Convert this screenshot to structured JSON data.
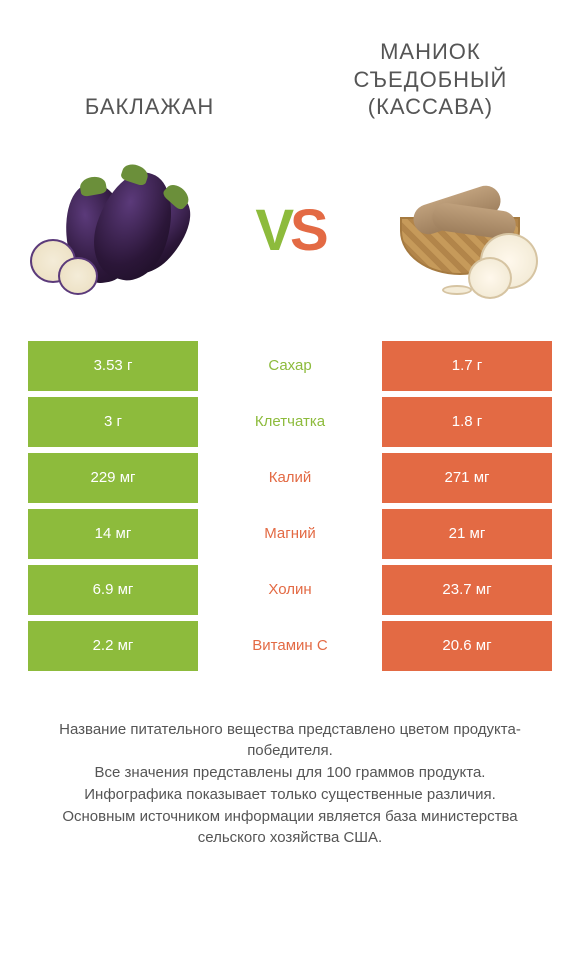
{
  "header": {
    "left_title": "БАКЛАЖАН",
    "right_title_line1": "МАНИОК",
    "right_title_line2": "СЪЕДОБНЫЙ",
    "right_title_line3": "(КАССАВА)"
  },
  "vs": {
    "v": "V",
    "s": "S"
  },
  "colors": {
    "left": "#8dbb3c",
    "right": "#e36a44",
    "bg": "#ffffff"
  },
  "nutrients": [
    {
      "label": "Сахар",
      "left": "3.53 г",
      "right": "1.7 г",
      "winner": "left"
    },
    {
      "label": "Клетчатка",
      "left": "3 г",
      "right": "1.8 г",
      "winner": "left"
    },
    {
      "label": "Калий",
      "left": "229 мг",
      "right": "271 мг",
      "winner": "right"
    },
    {
      "label": "Магний",
      "left": "14 мг",
      "right": "21 мг",
      "winner": "right"
    },
    {
      "label": "Холин",
      "left": "6.9 мг",
      "right": "23.7 мг",
      "winner": "right"
    },
    {
      "label": "Витамин C",
      "left": "2.2 мг",
      "right": "20.6 мг",
      "winner": "right"
    }
  ],
  "footer": {
    "line1": "Название питательного вещества представлено цветом продукта-победителя.",
    "line2": "Все значения представлены для 100 граммов продукта.",
    "line3": "Инфографика показывает только существенные различия.",
    "line4": "Основным источником информации является база министерства сельского хозяйства США."
  }
}
